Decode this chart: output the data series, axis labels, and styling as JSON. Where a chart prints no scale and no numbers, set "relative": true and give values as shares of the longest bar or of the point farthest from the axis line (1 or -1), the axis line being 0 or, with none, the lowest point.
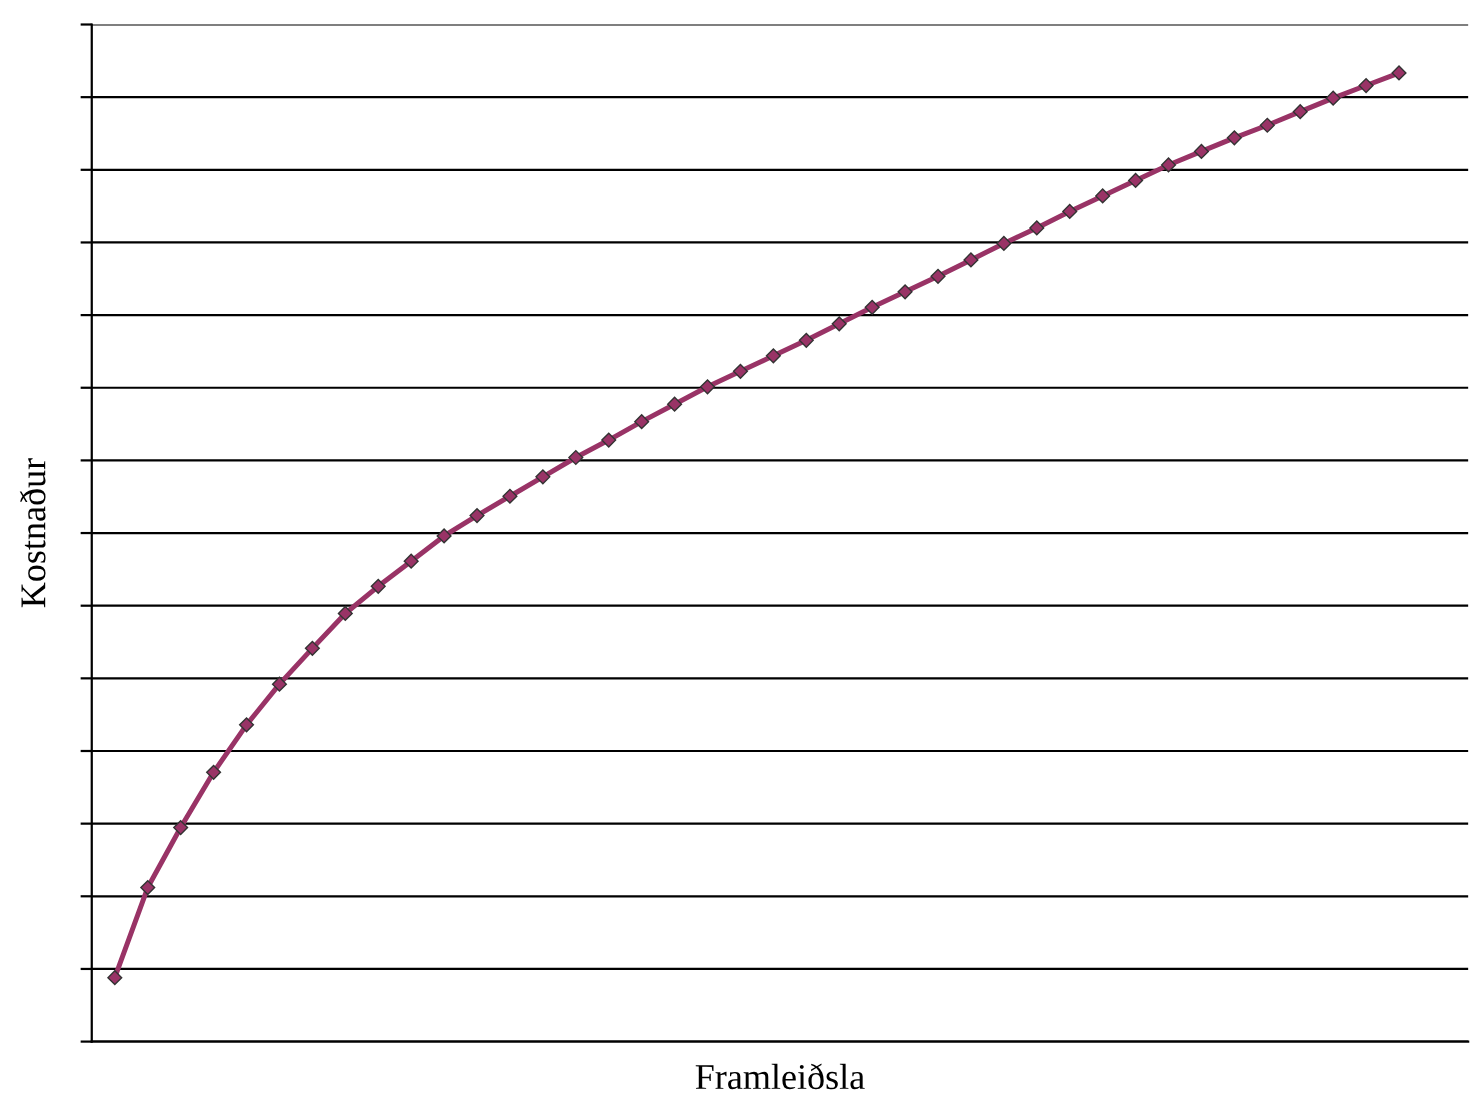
{
  "chart_data": {
    "type": "line",
    "relative": true,
    "xlabel": "Framleiðsla",
    "ylabel": "Kostnaður",
    "categories": [
      null,
      null,
      null,
      null,
      null,
      null,
      null,
      null,
      null,
      null,
      null,
      null,
      null,
      null,
      null,
      null,
      null,
      null,
      null,
      null,
      null,
      null,
      null,
      null,
      null,
      null,
      null,
      null,
      null,
      null,
      null,
      null,
      null,
      null,
      null,
      null,
      null,
      null,
      null,
      null
    ],
    "series": [
      {
        "color": "#993366",
        "values": [
          0.066,
          0.159,
          0.221,
          0.278,
          0.327,
          0.369,
          0.406,
          0.442,
          0.47,
          0.496,
          0.522,
          0.543,
          0.563,
          0.583,
          0.603,
          0.621,
          0.64,
          0.658,
          0.676,
          0.692,
          0.708,
          0.724,
          0.741,
          0.758,
          0.774,
          0.79,
          0.807,
          0.824,
          0.84,
          0.857,
          0.873,
          0.889,
          0.905,
          0.919,
          0.933,
          0.946,
          0.96,
          0.974,
          0.987,
          1.0
        ]
      }
    ],
    "marker": "diamond",
    "line_style": "solid",
    "grid": "y",
    "legend": false,
    "tick_labels": false
  }
}
